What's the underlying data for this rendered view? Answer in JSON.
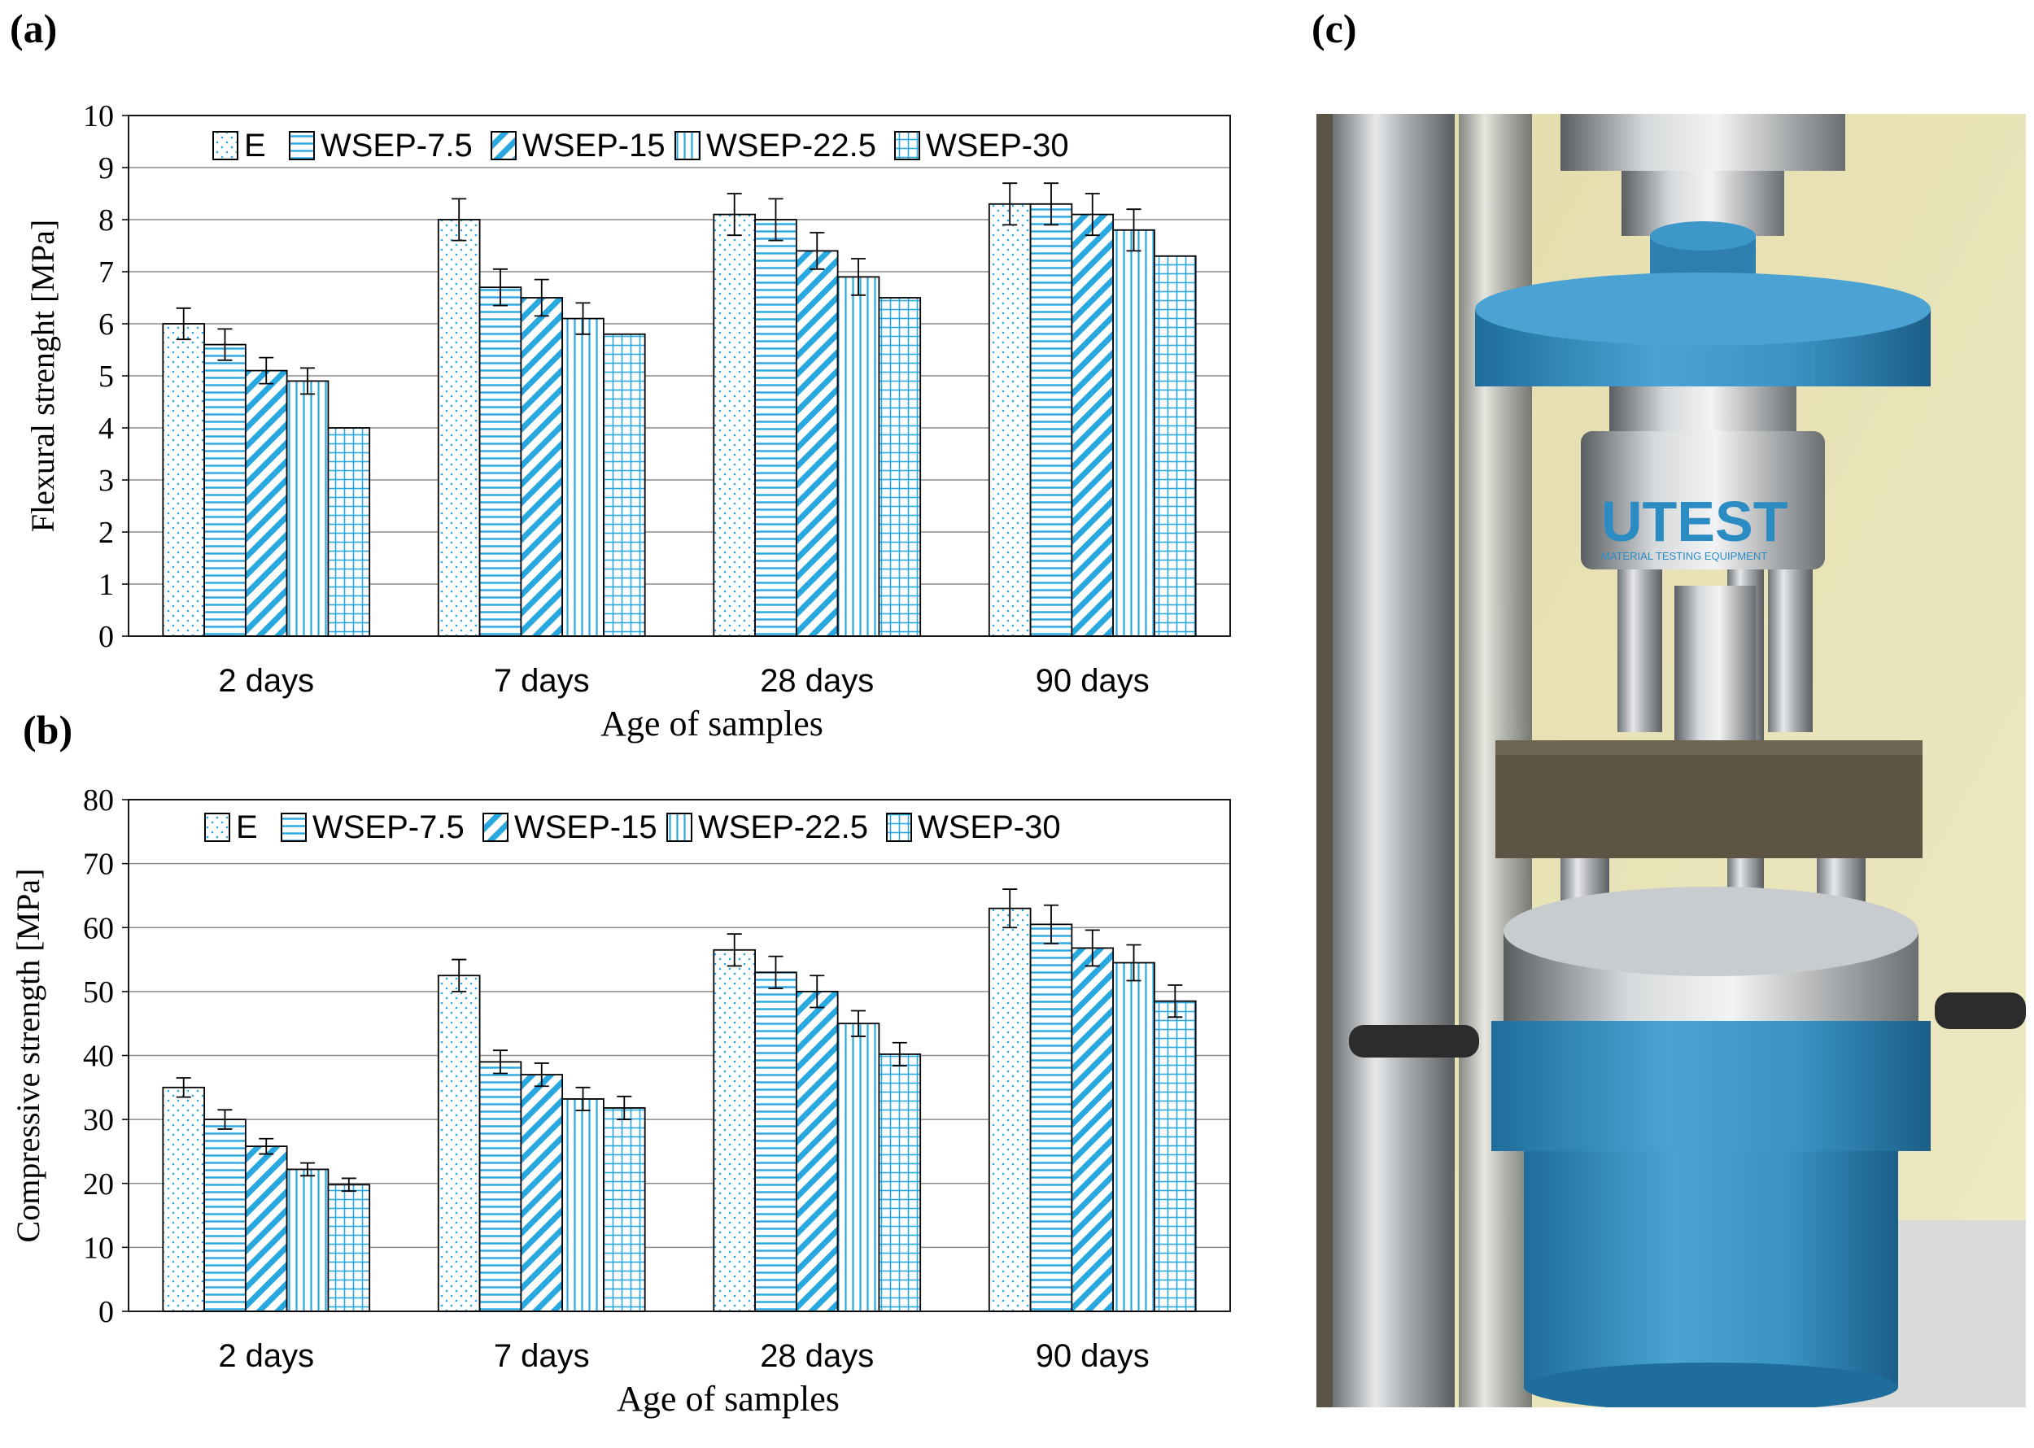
{
  "panels": {
    "a": "(a)",
    "b": "(b)",
    "c": "(c)"
  },
  "photo": {
    "brand_text": "UTEST",
    "sub_text": "MATERIAL TESTING EQUIPMENT"
  },
  "colors": {
    "bar_pattern": "#29a8e0",
    "frame": "#000000",
    "grid": "#8c8c8c",
    "machine_blue": "#3a93c4",
    "wall": "#e8e3b4"
  },
  "chart_data": [
    {
      "type": "bar",
      "title": "",
      "xlabel": "Age of samples",
      "ylabel": "Flexural strenght [MPa]",
      "categories": [
        "2 days",
        "7 days",
        "28 days",
        "90 days"
      ],
      "ylim": [
        0,
        10
      ],
      "yticks": [
        0,
        1,
        2,
        3,
        4,
        5,
        6,
        7,
        8,
        9,
        10
      ],
      "grid": true,
      "legend": "top",
      "error_bars": true,
      "series": [
        {
          "name": "E",
          "pattern": "dots",
          "values": [
            6.0,
            8.0,
            8.1,
            8.3
          ],
          "errors": [
            0.3,
            0.4,
            0.4,
            0.4
          ]
        },
        {
          "name": "WSEP-7.5",
          "pattern": "hlines",
          "values": [
            5.6,
            6.7,
            8.0,
            8.3
          ],
          "errors": [
            0.3,
            0.35,
            0.4,
            0.4
          ]
        },
        {
          "name": "WSEP-15",
          "pattern": "diagonal",
          "values": [
            5.1,
            6.5,
            7.4,
            8.1
          ],
          "errors": [
            0.25,
            0.35,
            0.35,
            0.4
          ]
        },
        {
          "name": "WSEP-22.5",
          "pattern": "vlines",
          "values": [
            4.9,
            6.1,
            6.9,
            7.8
          ],
          "errors": [
            0.25,
            0.3,
            0.35,
            0.4
          ]
        },
        {
          "name": "WSEP-30",
          "pattern": "grid",
          "values": [
            4.0,
            5.8,
            6.5,
            7.3
          ],
          "errors": [
            0,
            0,
            0,
            0
          ]
        }
      ]
    },
    {
      "type": "bar",
      "title": "",
      "xlabel": "Age of samples",
      "ylabel": "Compressive strength [MPa]",
      "categories": [
        "2 days",
        "7 days",
        "28 days",
        "90 days"
      ],
      "ylim": [
        0,
        80
      ],
      "yticks": [
        0,
        10,
        20,
        30,
        40,
        50,
        60,
        70,
        80
      ],
      "grid": true,
      "legend": "top",
      "error_bars": true,
      "series": [
        {
          "name": "E",
          "pattern": "dots",
          "values": [
            35.0,
            52.5,
            56.5,
            63.0
          ],
          "errors": [
            1.5,
            2.5,
            2.5,
            3.0
          ]
        },
        {
          "name": "WSEP-7.5",
          "pattern": "hlines",
          "values": [
            30.0,
            39.0,
            53.0,
            60.5
          ],
          "errors": [
            1.5,
            1.8,
            2.5,
            3.0
          ]
        },
        {
          "name": "WSEP-15",
          "pattern": "diagonal",
          "values": [
            25.8,
            37.0,
            50.0,
            56.8
          ],
          "errors": [
            1.2,
            1.8,
            2.5,
            2.8
          ]
        },
        {
          "name": "WSEP-22.5",
          "pattern": "vlines",
          "values": [
            22.2,
            33.2,
            45.0,
            54.5
          ],
          "errors": [
            1.0,
            1.8,
            2.0,
            2.8
          ]
        },
        {
          "name": "WSEP-30",
          "pattern": "grid",
          "values": [
            19.8,
            31.8,
            40.2,
            48.5
          ],
          "errors": [
            1.0,
            1.8,
            1.8,
            2.5
          ]
        }
      ]
    }
  ]
}
